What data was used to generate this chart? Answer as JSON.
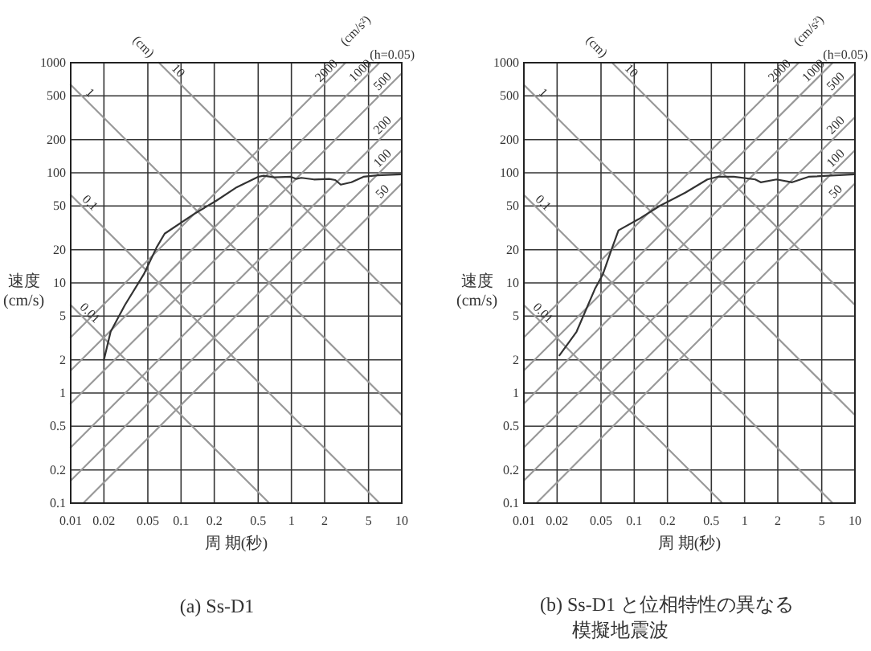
{
  "chart_data": [
    {
      "type": "line",
      "title": "(a) Ss-D1",
      "xlabel": "周 期(秒)",
      "ylabel": "速度 (cm/s)",
      "log": "xy",
      "grid": true,
      "xlim": [
        0.01,
        10
      ],
      "ylim": [
        0.1,
        1000
      ],
      "xticks": [
        0.01,
        0.02,
        0.05,
        0.1,
        0.2,
        0.5,
        1,
        2,
        5,
        10
      ],
      "yticks": [
        0.1,
        0.2,
        0.5,
        1,
        2,
        5,
        10,
        20,
        50,
        100,
        200,
        500,
        1000
      ],
      "annotations": [
        "(cm)",
        "(cm/s²)",
        "(h=0.05)"
      ],
      "series": [
        {
          "color": "#999999",
          "name": "0.01",
          "x": [
            0.01,
            0.63
          ],
          "values": [
            6.3,
            0.1
          ]
        },
        {
          "color": "#999999",
          "name": "0.1",
          "x": [
            0.01,
            6.3
          ],
          "values": [
            63,
            0.1
          ]
        },
        {
          "color": "#999999",
          "name": "1",
          "x": [
            0.01,
            10
          ],
          "values": [
            630,
            0.63
          ]
        },
        {
          "color": "#999999",
          "name": "10",
          "x": [
            0.063,
            10
          ],
          "values": [
            1000,
            6.3
          ]
        },
        {
          "color": "#999999",
          "name": "2000",
          "x": [
            0.01,
            3.1
          ],
          "values": [
            3.2,
            1000
          ]
        },
        {
          "color": "#999999",
          "name": "1000",
          "x": [
            0.01,
            6.3
          ],
          "values": [
            1.6,
            1000
          ]
        },
        {
          "color": "#999999",
          "name": "500",
          "x": [
            0.01,
            10
          ],
          "values": [
            0.8,
            800
          ]
        },
        {
          "color": "#999999",
          "name": "200",
          "x": [
            0.01,
            10
          ],
          "values": [
            0.32,
            320
          ]
        },
        {
          "color": "#999999",
          "name": "100",
          "x": [
            0.01,
            10
          ],
          "values": [
            0.16,
            160
          ]
        },
        {
          "color": "#999999",
          "name": "50",
          "x": [
            0.013,
            10
          ],
          "values": [
            0.1,
            80
          ]
        },
        {
          "color": "#333333",
          "x": [
            0.02,
            0.023,
            0.031,
            0.046,
            0.06,
            0.071,
            0.13,
            0.21,
            0.32,
            0.5,
            0.56,
            0.7,
            0.99,
            1.1,
            1.23,
            1.6,
            2.2,
            2.5,
            2.8,
            3.5,
            4.5,
            6,
            10
          ],
          "values": [
            2,
            3.6,
            6.3,
            12,
            21,
            28,
            42,
            56,
            74,
            92,
            94,
            91,
            92,
            88,
            90,
            87,
            88,
            86,
            78,
            82,
            92,
            95,
            97
          ]
        }
      ]
    },
    {
      "type": "line",
      "title": "(b) Ss-D1 と位相特性の異なる模擬地震波",
      "xlabel": "周 期(秒)",
      "ylabel": "速度 (cm/s)",
      "log": "xy",
      "grid": true,
      "xlim": [
        0.01,
        10
      ],
      "ylim": [
        0.1,
        1000
      ],
      "xticks": [
        0.01,
        0.02,
        0.05,
        0.1,
        0.2,
        0.5,
        1,
        2,
        5,
        10
      ],
      "yticks": [
        0.1,
        0.2,
        0.5,
        1,
        2,
        5,
        10,
        20,
        50,
        100,
        200,
        500,
        1000
      ],
      "annotations": [
        "(cm)",
        "(cm/s²)",
        "(h=0.05)"
      ],
      "series": [
        {
          "color": "#999999",
          "name": "0.01",
          "x": [
            0.01,
            0.63
          ],
          "values": [
            6.3,
            0.1
          ]
        },
        {
          "color": "#999999",
          "name": "0.1",
          "x": [
            0.01,
            6.3
          ],
          "values": [
            63,
            0.1
          ]
        },
        {
          "color": "#999999",
          "name": "1",
          "x": [
            0.01,
            10
          ],
          "values": [
            630,
            0.63
          ]
        },
        {
          "color": "#999999",
          "name": "10",
          "x": [
            0.063,
            10
          ],
          "values": [
            1000,
            6.3
          ]
        },
        {
          "color": "#999999",
          "name": "2000",
          "x": [
            0.01,
            3.1
          ],
          "values": [
            3.2,
            1000
          ]
        },
        {
          "color": "#999999",
          "name": "1000",
          "x": [
            0.01,
            6.3
          ],
          "values": [
            1.6,
            1000
          ]
        },
        {
          "color": "#999999",
          "name": "500",
          "x": [
            0.01,
            10
          ],
          "values": [
            0.8,
            800
          ]
        },
        {
          "color": "#999999",
          "name": "200",
          "x": [
            0.01,
            10
          ],
          "values": [
            0.32,
            320
          ]
        },
        {
          "color": "#999999",
          "name": "100",
          "x": [
            0.01,
            10
          ],
          "values": [
            0.16,
            160
          ]
        },
        {
          "color": "#999999",
          "name": "50",
          "x": [
            0.013,
            10
          ],
          "values": [
            0.1,
            80
          ]
        },
        {
          "color": "#333333",
          "x": [
            0.021,
            0.03,
            0.044,
            0.052,
            0.061,
            0.072,
            0.11,
            0.17,
            0.29,
            0.46,
            0.57,
            0.8,
            1.25,
            1.4,
            1.95,
            2.7,
            3.8,
            10
          ],
          "values": [
            2.2,
            3.6,
            8.8,
            12,
            19,
            30,
            38,
            50,
            66,
            87,
            92,
            92,
            87,
            82,
            87,
            82,
            92,
            97
          ]
        }
      ]
    }
  ]
}
